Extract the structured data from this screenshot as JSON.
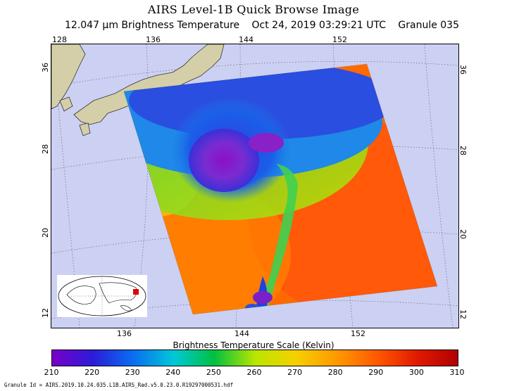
{
  "title": "AIRS Level-1B Quick Browse Image",
  "subtitle": {
    "band": "12.047 µm Brightness Temperature",
    "date": "Oct 24, 2019 03:29:21 UTC",
    "granule": "Granule 035"
  },
  "map": {
    "top_lon_ticks": [
      "128",
      "136",
      "144",
      "152"
    ],
    "bottom_lon_ticks": [
      "136",
      "144",
      "152"
    ],
    "left_lat_ticks": [
      "36",
      "28",
      "20",
      "12"
    ],
    "right_lat_ticks": [
      "36",
      "28",
      "20",
      "12"
    ],
    "land_color": "#d4cfa8",
    "background_color": "#ccd0f2",
    "inset_icon": "globe-locator-icon"
  },
  "colorbar": {
    "title": "Brightness Temperature Scale (Kelvin)",
    "labels": [
      "210",
      "220",
      "230",
      "240",
      "250",
      "260",
      "270",
      "280",
      "290",
      "300",
      "310"
    ],
    "min": 210,
    "max": 310,
    "colors": [
      "#7a00c8",
      "#2c1cd8",
      "#0a6ef0",
      "#00c8d8",
      "#00c040",
      "#b8e600",
      "#f5d000",
      "#ff9a00",
      "#ff5a00",
      "#e11a00",
      "#b00000"
    ]
  },
  "footer": "Granule Id = AIRS.2019.10.24.035.L1B.AIRS_Rad.v5.0.23.0.R19297000531.hdf"
}
